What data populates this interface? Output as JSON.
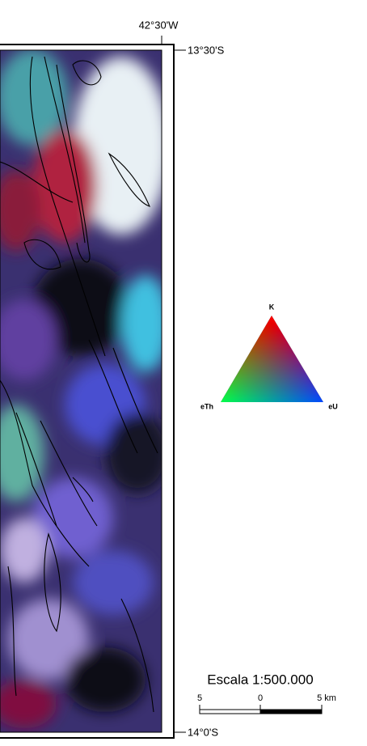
{
  "map": {
    "longitude_label": "42°30'W",
    "latitude_top": "13°30'S",
    "latitude_bottom": "14°0'S",
    "legend": {
      "apex": "K",
      "left": "eTh",
      "right": "eU"
    },
    "scale": {
      "title": "Escala 1:500.000",
      "labels": [
        "5",
        "0",
        "5 km"
      ]
    }
  }
}
